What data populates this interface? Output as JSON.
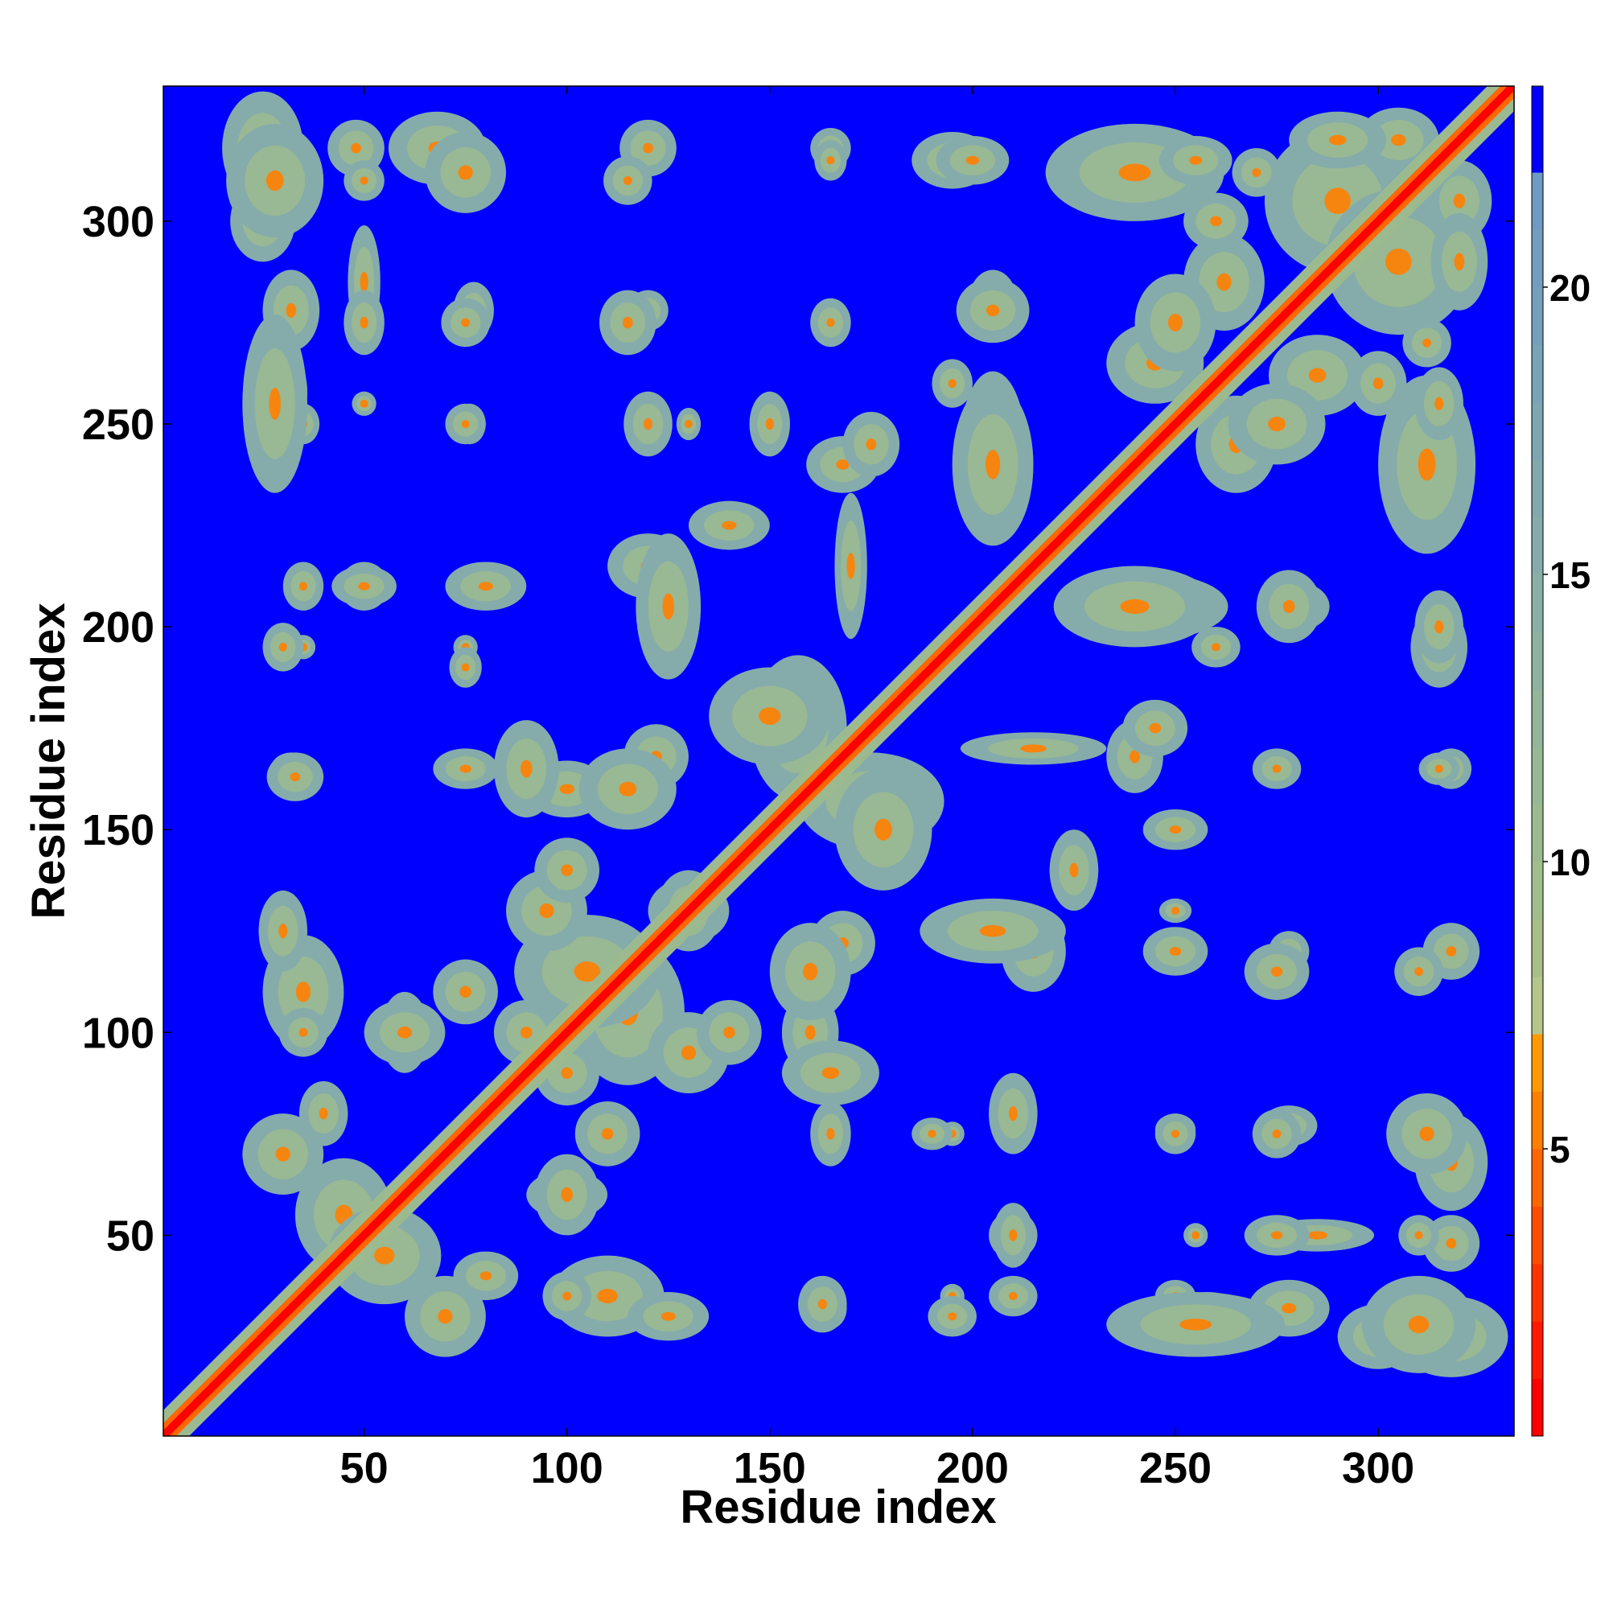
{
  "chart_data": {
    "type": "heatmap",
    "description": "Residue contact distance map (symmetric)",
    "xlabel": "Residue index",
    "ylabel": "Residue index",
    "xlim": [
      1,
      333
    ],
    "ylim": [
      1,
      333
    ],
    "x_ticks": [
      50,
      100,
      150,
      200,
      250,
      300
    ],
    "y_ticks": [
      50,
      100,
      150,
      200,
      250,
      300
    ],
    "colorbar": {
      "range": [
        0,
        23.5
      ],
      "ticks": [
        5,
        10,
        15,
        20
      ],
      "levels": [
        {
          "max": 1,
          "color": "#ff0000"
        },
        {
          "max": 2,
          "color": "#ff1a00"
        },
        {
          "max": 3,
          "color": "#ff3300"
        },
        {
          "max": 4,
          "color": "#ff4d00"
        },
        {
          "max": 5,
          "color": "#ff6600"
        },
        {
          "max": 6,
          "color": "#ff7f00"
        },
        {
          "max": 7,
          "color": "#ff9900"
        },
        {
          "max": 8,
          "color": "#b5c68c"
        },
        {
          "max": 9,
          "color": "#a6c087"
        },
        {
          "max": 10,
          "color": "#a0bd8c"
        },
        {
          "max": 11,
          "color": "#9cba90"
        },
        {
          "max": 12,
          "color": "#97b895"
        },
        {
          "max": 13,
          "color": "#93b59a"
        },
        {
          "max": 14,
          "color": "#8eb2a0"
        },
        {
          "max": 15,
          "color": "#8aafa5"
        },
        {
          "max": 16,
          "color": "#85acaa"
        },
        {
          "max": 17,
          "color": "#81a9ae"
        },
        {
          "max": 18,
          "color": "#7da6b3"
        },
        {
          "max": 19,
          "color": "#79a3b7"
        },
        {
          "max": 20,
          "color": "#75a0bb"
        },
        {
          "max": 21,
          "color": "#729dbf"
        },
        {
          "max": 22,
          "color": "#6e9ac3"
        },
        {
          "max": 23.5,
          "color": "#0000ff"
        }
      ]
    },
    "background_color": "#0000ff",
    "diagonal": {
      "core_color": "#ff0000",
      "edge_color": "#ff6600",
      "halo_color": "#9cba90"
    },
    "contact_blobs": [
      [
        25,
        318,
        10,
        14
      ],
      [
        25,
        300,
        8,
        10
      ],
      [
        32,
        278,
        7,
        10
      ],
      [
        30,
        258,
        6,
        10
      ],
      [
        35,
        250,
        4,
        5
      ],
      [
        48,
        318,
        7,
        7
      ],
      [
        68,
        318,
        12,
        9
      ],
      [
        50,
        285,
        4,
        14
      ],
      [
        77,
        278,
        5,
        7
      ],
      [
        50,
        255,
        3,
        3
      ],
      [
        76,
        250,
        4,
        5
      ],
      [
        120,
        318,
        7,
        7
      ],
      [
        165,
        318,
        5,
        5
      ],
      [
        195,
        315,
        10,
        7
      ],
      [
        240,
        312,
        22,
        12
      ],
      [
        262,
        285,
        10,
        12
      ],
      [
        290,
        305,
        18,
        18
      ],
      [
        305,
        320,
        10,
        8
      ],
      [
        320,
        290,
        7,
        12
      ],
      [
        315,
        255,
        6,
        9
      ],
      [
        120,
        278,
        5,
        5
      ],
      [
        165,
        275,
        5,
        6
      ],
      [
        205,
        280,
        6,
        8
      ],
      [
        205,
        245,
        8,
        18
      ],
      [
        195,
        260,
        5,
        6
      ],
      [
        168,
        240,
        9,
        7
      ],
      [
        140,
        225,
        8,
        6
      ],
      [
        120,
        250,
        5,
        5
      ],
      [
        245,
        265,
        12,
        10
      ],
      [
        275,
        250,
        12,
        10
      ],
      [
        300,
        260,
        7,
        8
      ],
      [
        312,
        270,
        6,
        6
      ],
      [
        35,
        210,
        5,
        6
      ],
      [
        50,
        210,
        6,
        6
      ],
      [
        78,
        210,
        7,
        5
      ],
      [
        120,
        215,
        10,
        8
      ],
      [
        240,
        205,
        20,
        10
      ],
      [
        278,
        205,
        8,
        9
      ],
      [
        315,
        200,
        6,
        9
      ],
      [
        35,
        195,
        3,
        3
      ],
      [
        75,
        195,
        3,
        3
      ],
      [
        32,
        165,
        5,
        4
      ],
      [
        75,
        165,
        8,
        5
      ],
      [
        100,
        160,
        10,
        7
      ],
      [
        122,
        168,
        8,
        8
      ],
      [
        157,
        175,
        12,
        18
      ],
      [
        178,
        150,
        12,
        15
      ],
      [
        215,
        170,
        18,
        4
      ],
      [
        245,
        175,
        8,
        7
      ],
      [
        315,
        165,
        5,
        4
      ],
      [
        35,
        110,
        10,
        14
      ],
      [
        30,
        70,
        10,
        10
      ],
      [
        45,
        55,
        12,
        14
      ],
      [
        75,
        110,
        8,
        8
      ],
      [
        60,
        100,
        6,
        10
      ],
      [
        80,
        40,
        8,
        6
      ],
      [
        100,
        35,
        6,
        6
      ],
      [
        115,
        105,
        14,
        18
      ],
      [
        100,
        60,
        8,
        10
      ],
      [
        125,
        30,
        10,
        6
      ],
      [
        130,
        130,
        10,
        8
      ],
      [
        160,
        115,
        10,
        12
      ],
      [
        165,
        90,
        12,
        8
      ],
      [
        205,
        125,
        18,
        8
      ],
      [
        190,
        75,
        5,
        4
      ],
      [
        210,
        80,
        6,
        10
      ],
      [
        210,
        50,
        5,
        8
      ],
      [
        195,
        30,
        6,
        5
      ],
      [
        163,
        33,
        6,
        7
      ],
      [
        250,
        120,
        8,
        6
      ],
      [
        250,
        75,
        5,
        5
      ],
      [
        275,
        115,
        8,
        7
      ],
      [
        275,
        75,
        6,
        6
      ],
      [
        310,
        115,
        6,
        6
      ],
      [
        312,
        75,
        10,
        10
      ],
      [
        275,
        50,
        8,
        5
      ],
      [
        310,
        50,
        5,
        5
      ],
      [
        255,
        28,
        22,
        8
      ],
      [
        310,
        28,
        14,
        12
      ],
      [
        95,
        130,
        10,
        10
      ],
      [
        100,
        90,
        8,
        8
      ],
      [
        140,
        100,
        8,
        8
      ],
      [
        225,
        140,
        6,
        10
      ],
      [
        250,
        150,
        8,
        5
      ],
      [
        130,
        250,
        3,
        4
      ]
    ]
  }
}
